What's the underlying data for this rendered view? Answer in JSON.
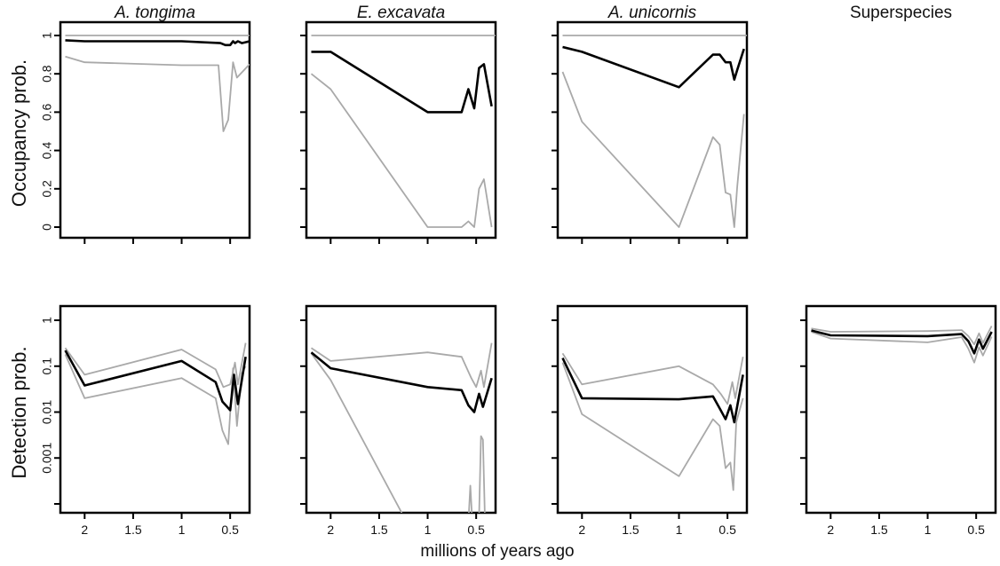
{
  "figure": {
    "ylabel_top": "Occupancy prob.",
    "ylabel_bottom": "Detection prob.",
    "xlabel": "millions of years ago"
  },
  "colors": {
    "mean": "#000000",
    "ci": "#a9a9a9"
  },
  "chart_data": [
    {
      "type": "line",
      "title": "A. tongima",
      "row": "occupancy",
      "col": 0,
      "xlim": [
        2.25,
        0.3
      ],
      "ylim": [
        0,
        1
      ],
      "yscale": "linear",
      "x_ticks": [
        2,
        1.5,
        1,
        0.5
      ],
      "y_ticks": [
        {
          "v": 0,
          "label": "0"
        },
        {
          "v": 0.2,
          "label": "0.2"
        },
        {
          "v": 0.4,
          "label": "0.4"
        },
        {
          "v": 0.6,
          "label": "0.6"
        },
        {
          "v": 0.8,
          "label": "0.8"
        },
        {
          "v": 1,
          "label": "1"
        }
      ],
      "series": [
        {
          "role": "upper",
          "x": [
            2.2,
            2.0,
            1.0,
            0.6,
            0.55,
            0.5,
            0.45,
            0.4,
            0.3
          ],
          "y": [
            1.0,
            1.0,
            1.0,
            1.0,
            1.0,
            1.0,
            1.0,
            1.0,
            1.0
          ]
        },
        {
          "role": "mean",
          "x": [
            2.2,
            2.0,
            1.0,
            0.6,
            0.55,
            0.5,
            0.47,
            0.45,
            0.42,
            0.38,
            0.3
          ],
          "y": [
            0.975,
            0.97,
            0.97,
            0.96,
            0.95,
            0.95,
            0.97,
            0.96,
            0.97,
            0.96,
            0.97
          ]
        },
        {
          "role": "lower",
          "x": [
            2.2,
            2.0,
            1.0,
            0.62,
            0.57,
            0.52,
            0.47,
            0.43,
            0.3
          ],
          "y": [
            0.89,
            0.86,
            0.845,
            0.845,
            0.5,
            0.56,
            0.86,
            0.78,
            0.85
          ]
        }
      ]
    },
    {
      "type": "line",
      "title": "E. excavata",
      "row": "occupancy",
      "col": 1,
      "xlim": [
        2.25,
        0.3
      ],
      "ylim": [
        0,
        1
      ],
      "yscale": "linear",
      "x_ticks": [
        2,
        1.5,
        1,
        0.5
      ],
      "y_ticks": [
        {
          "v": 0,
          "label": ""
        },
        {
          "v": 0.2,
          "label": ""
        },
        {
          "v": 0.4,
          "label": ""
        },
        {
          "v": 0.6,
          "label": ""
        },
        {
          "v": 0.8,
          "label": ""
        },
        {
          "v": 1,
          "label": ""
        }
      ],
      "series": [
        {
          "role": "upper",
          "x": [
            2.2,
            1.0,
            0.6,
            0.5,
            0.4,
            0.3
          ],
          "y": [
            1.0,
            1.0,
            1.0,
            1.0,
            1.0,
            1.0
          ]
        },
        {
          "role": "mean",
          "x": [
            2.2,
            2.0,
            1.0,
            0.65,
            0.58,
            0.52,
            0.47,
            0.42,
            0.34
          ],
          "y": [
            0.915,
            0.915,
            0.6,
            0.6,
            0.72,
            0.62,
            0.83,
            0.85,
            0.63
          ]
        },
        {
          "role": "lower",
          "x": [
            2.2,
            2.0,
            1.0,
            0.65,
            0.58,
            0.52,
            0.47,
            0.42,
            0.34
          ],
          "y": [
            0.8,
            0.72,
            0.0,
            0.0,
            0.03,
            0.0,
            0.2,
            0.25,
            0.0
          ]
        }
      ]
    },
    {
      "type": "line",
      "title": "A. unicornis",
      "row": "occupancy",
      "col": 2,
      "xlim": [
        2.25,
        0.3
      ],
      "ylim": [
        0,
        1
      ],
      "yscale": "linear",
      "x_ticks": [
        2,
        1.5,
        1,
        0.5
      ],
      "y_ticks": [
        {
          "v": 0,
          "label": ""
        },
        {
          "v": 0.2,
          "label": ""
        },
        {
          "v": 0.4,
          "label": ""
        },
        {
          "v": 0.6,
          "label": ""
        },
        {
          "v": 0.8,
          "label": ""
        },
        {
          "v": 1,
          "label": ""
        }
      ],
      "series": [
        {
          "role": "upper",
          "x": [
            2.2,
            1.0,
            0.6,
            0.5,
            0.4,
            0.3
          ],
          "y": [
            1.0,
            1.0,
            1.0,
            1.0,
            1.0,
            1.0
          ]
        },
        {
          "role": "mean",
          "x": [
            2.2,
            2.0,
            1.0,
            0.65,
            0.58,
            0.52,
            0.47,
            0.43,
            0.4,
            0.33
          ],
          "y": [
            0.94,
            0.915,
            0.73,
            0.9,
            0.9,
            0.86,
            0.86,
            0.77,
            0.82,
            0.93
          ]
        },
        {
          "role": "lower",
          "x": [
            2.2,
            2.0,
            1.0,
            0.65,
            0.58,
            0.52,
            0.47,
            0.43,
            0.4,
            0.33
          ],
          "y": [
            0.81,
            0.55,
            0.0,
            0.47,
            0.43,
            0.18,
            0.17,
            0.0,
            0.21,
            0.59
          ]
        }
      ]
    },
    {
      "type": "line",
      "title": "A. tongima",
      "row": "detection",
      "col": 0,
      "xlim": [
        2.25,
        0.3
      ],
      "ylim": [
        0.0001,
        1
      ],
      "yscale": "log",
      "x_ticks": [
        2,
        1.5,
        1,
        0.5
      ],
      "y_ticks": [
        {
          "v": 1,
          "label": "1"
        },
        {
          "v": 0.1,
          "label": "0.1"
        },
        {
          "v": 0.01,
          "label": "0.01"
        },
        {
          "v": 0.001,
          "label": "0.001"
        },
        {
          "v": 0.0001,
          "label": ""
        }
      ],
      "series": [
        {
          "role": "upper",
          "x": [
            2.2,
            2.0,
            1.0,
            0.65,
            0.57,
            0.5,
            0.45,
            0.42,
            0.34
          ],
          "y": [
            0.25,
            0.065,
            0.23,
            0.085,
            0.035,
            0.04,
            0.12,
            0.04,
            0.32
          ]
        },
        {
          "role": "mean",
          "x": [
            2.2,
            2.0,
            1.0,
            0.65,
            0.58,
            0.5,
            0.46,
            0.42,
            0.34
          ],
          "y": [
            0.22,
            0.038,
            0.13,
            0.045,
            0.017,
            0.011,
            0.065,
            0.015,
            0.16
          ]
        },
        {
          "role": "lower",
          "x": [
            2.2,
            2.0,
            1.0,
            0.65,
            0.58,
            0.52,
            0.47,
            0.43,
            0.38,
            0.34
          ],
          "y": [
            0.18,
            0.02,
            0.055,
            0.02,
            0.004,
            0.002,
            0.09,
            0.005,
            0.07,
            0.1
          ]
        }
      ]
    },
    {
      "type": "line",
      "title": "E. excavata",
      "row": "detection",
      "col": 1,
      "xlim": [
        2.25,
        0.3
      ],
      "ylim": [
        0.0001,
        1
      ],
      "yscale": "log",
      "x_ticks": [
        2,
        1.5,
        1,
        0.5
      ],
      "y_ticks": [
        {
          "v": 1,
          "label": ""
        },
        {
          "v": 0.1,
          "label": ""
        },
        {
          "v": 0.01,
          "label": ""
        },
        {
          "v": 0.001,
          "label": ""
        },
        {
          "v": 0.0001,
          "label": ""
        }
      ],
      "series": [
        {
          "role": "upper",
          "x": [
            2.2,
            2.0,
            1.0,
            0.65,
            0.55,
            0.5,
            0.45,
            0.42,
            0.34
          ],
          "y": [
            0.25,
            0.13,
            0.2,
            0.16,
            0.055,
            0.035,
            0.08,
            0.035,
            0.32
          ]
        },
        {
          "role": "mean",
          "x": [
            2.2,
            2.0,
            1.0,
            0.65,
            0.58,
            0.52,
            0.47,
            0.43,
            0.34
          ],
          "y": [
            0.2,
            0.09,
            0.035,
            0.03,
            0.014,
            0.01,
            0.025,
            0.013,
            0.055
          ]
        },
        {
          "role": "lower",
          "x": [
            2.2,
            2.0,
            1.24
          ],
          "y": [
            0.19,
            0.05,
            5e-05
          ]
        },
        {
          "role": "lower",
          "x": [
            0.58,
            0.56,
            0.54
          ],
          "y": [
            4e-05,
            0.00025,
            4e-05
          ]
        },
        {
          "role": "lower",
          "x": [
            0.47,
            0.45,
            0.43,
            0.41
          ],
          "y": [
            5e-05,
            0.003,
            0.0025,
            5e-05
          ]
        }
      ]
    },
    {
      "type": "line",
      "title": "A. unicornis",
      "row": "detection",
      "col": 2,
      "xlim": [
        2.25,
        0.3
      ],
      "ylim": [
        0.0001,
        1
      ],
      "yscale": "log",
      "x_ticks": [
        2,
        1.5,
        1,
        0.5
      ],
      "y_ticks": [
        {
          "v": 1,
          "label": ""
        },
        {
          "v": 0.1,
          "label": ""
        },
        {
          "v": 0.01,
          "label": ""
        },
        {
          "v": 0.001,
          "label": ""
        },
        {
          "v": 0.0001,
          "label": ""
        }
      ],
      "series": [
        {
          "role": "upper",
          "x": [
            2.2,
            2.0,
            1.0,
            0.65,
            0.57,
            0.5,
            0.45,
            0.42,
            0.34
          ],
          "y": [
            0.19,
            0.04,
            0.1,
            0.04,
            0.025,
            0.015,
            0.045,
            0.02,
            0.16
          ]
        },
        {
          "role": "mean",
          "x": [
            2.2,
            2.0,
            1.0,
            0.65,
            0.58,
            0.52,
            0.47,
            0.43,
            0.34
          ],
          "y": [
            0.15,
            0.02,
            0.019,
            0.022,
            0.012,
            0.007,
            0.014,
            0.006,
            0.065
          ]
        },
        {
          "role": "lower",
          "x": [
            2.2,
            2.0,
            1.0,
            0.65,
            0.58,
            0.52,
            0.47,
            0.44,
            0.41,
            0.34
          ],
          "y": [
            0.12,
            0.009,
            0.0004,
            0.007,
            0.005,
            0.0006,
            0.0008,
            0.0002,
            0.006,
            0.02
          ]
        }
      ]
    },
    {
      "type": "line",
      "title": "Superspecies",
      "row": "detection",
      "col": 3,
      "xlim": [
        2.25,
        0.3
      ],
      "ylim": [
        0.0001,
        1
      ],
      "yscale": "log",
      "x_ticks": [
        2,
        1.5,
        1,
        0.5
      ],
      "y_ticks": [
        {
          "v": 1,
          "label": ""
        },
        {
          "v": 0.1,
          "label": ""
        },
        {
          "v": 0.01,
          "label": ""
        },
        {
          "v": 0.001,
          "label": ""
        },
        {
          "v": 0.0001,
          "label": ""
        }
      ],
      "series": [
        {
          "role": "upper",
          "x": [
            2.2,
            2.0,
            1.0,
            0.65,
            0.58,
            0.52,
            0.47,
            0.43,
            0.34
          ],
          "y": [
            0.66,
            0.56,
            0.58,
            0.61,
            0.45,
            0.3,
            0.52,
            0.32,
            0.75
          ]
        },
        {
          "role": "mean",
          "x": [
            2.2,
            2.0,
            1.0,
            0.65,
            0.58,
            0.52,
            0.47,
            0.43,
            0.34
          ],
          "y": [
            0.6,
            0.47,
            0.45,
            0.5,
            0.35,
            0.19,
            0.38,
            0.24,
            0.56
          ]
        },
        {
          "role": "lower",
          "x": [
            2.2,
            2.0,
            1.0,
            0.65,
            0.58,
            0.52,
            0.47,
            0.43,
            0.34
          ],
          "y": [
            0.56,
            0.4,
            0.33,
            0.43,
            0.24,
            0.12,
            0.26,
            0.17,
            0.44
          ]
        }
      ]
    }
  ]
}
